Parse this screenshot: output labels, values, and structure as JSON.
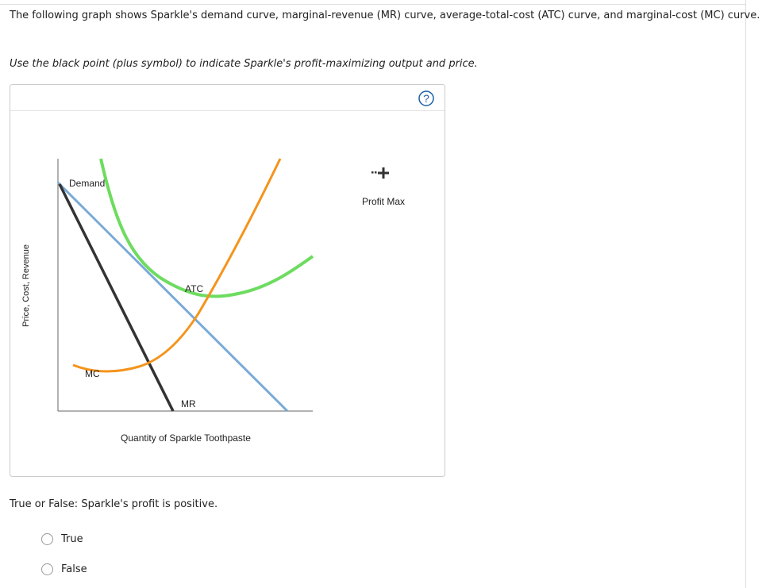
{
  "intro": "The following graph shows Sparkle's demand curve, marginal-revenue (MR) curve, average-total-cost (ATC) curve, and marginal-cost (MC) curve.",
  "instruction": "Use the black point (plus symbol) to indicate Sparkle's profit-maximizing output and price.",
  "graph": {
    "help": "?",
    "y_axis_label": "Price, Cost, Revenue",
    "x_axis_label": "Quantity of Sparkle Toothpaste",
    "curve_labels": {
      "demand": "Demand",
      "mr": "MR",
      "atc": "ATC",
      "mc": "MC"
    },
    "tool_label": "Profit Max"
  },
  "question": "True or False: Sparkle's profit is positive.",
  "options": [
    "True",
    "False"
  ]
}
